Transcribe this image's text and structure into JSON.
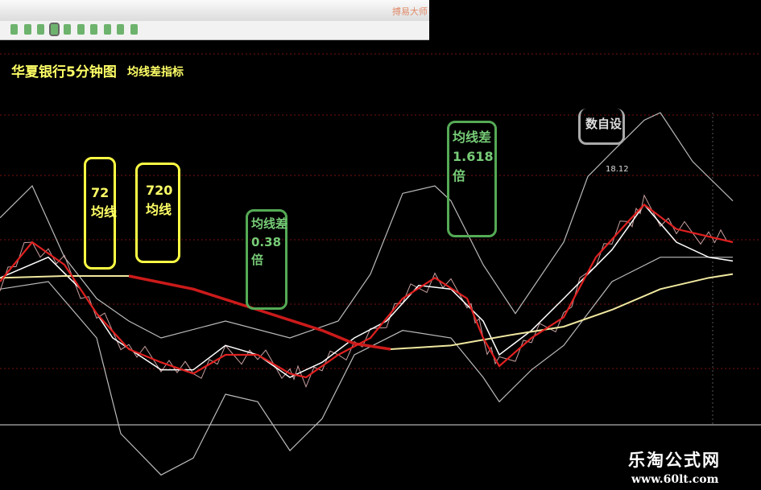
{
  "window": {
    "app_title": "搏易大师",
    "toolbar_buttons": 10,
    "selected_button": 3
  },
  "header": {
    "title": "华夏银行5分钟图",
    "subtitle": "均线差指标"
  },
  "annotations": {
    "ma72": "72\n均线",
    "ma720": "720\n均线",
    "diff1": "均线差\n0.38\n倍",
    "diff2": "均线差\n1.618\n倍",
    "custom": "数自设",
    "price_label": "18.12"
  },
  "watermark": {
    "name": "乐淘公式网",
    "url": "www.60lt.com"
  },
  "colors": {
    "ma72": "#e02020",
    "ma720_red": "#cc1a1a",
    "ma720_yellow": "#f0e8a0",
    "white_ma": "#ffffff",
    "band": "#bbbbbb",
    "grid": "#7a1010",
    "callout_yellow": "#ffff44",
    "callout_green": "#55aa55",
    "callout_gray": "#aaaaaa"
  },
  "chart_data": {
    "type": "line",
    "ylim": [
      16.6,
      18.4
    ],
    "xlim": [
      0,
      91
    ],
    "grid": true,
    "series": [
      {
        "key": "upper_band",
        "x": [
          0,
          4,
          8,
          12,
          16,
          20,
          28,
          36,
          42,
          46,
          50,
          54,
          56,
          60,
          64,
          70,
          73,
          76,
          80,
          82,
          86,
          91
        ],
        "y": [
          17.84,
          18.01,
          17.63,
          17.41,
          17.29,
          17.2,
          17.29,
          17.2,
          17.29,
          17.54,
          17.97,
          18.01,
          17.93,
          17.59,
          17.33,
          17.71,
          18.06,
          18.19,
          18.36,
          18.4,
          18.14,
          17.93
        ]
      },
      {
        "key": "lower_band",
        "x": [
          0,
          6,
          12,
          15,
          20,
          24,
          28,
          32,
          36,
          40,
          44,
          50,
          56,
          60,
          62,
          66,
          70,
          76,
          82,
          91
        ],
        "y": [
          17.46,
          17.5,
          17.2,
          16.69,
          16.47,
          16.56,
          16.9,
          16.86,
          16.6,
          16.77,
          17.11,
          17.24,
          17.2,
          16.99,
          16.86,
          17.03,
          17.16,
          17.5,
          17.63,
          17.63
        ]
      },
      {
        "key": "white_ma",
        "x": [
          0,
          6,
          10,
          14,
          20,
          24,
          28,
          32,
          36,
          40,
          44,
          48,
          52,
          56,
          60,
          62,
          66,
          70,
          76,
          80,
          84,
          88,
          91
        ],
        "y": [
          17.52,
          17.63,
          17.46,
          17.2,
          17.03,
          17.03,
          17.16,
          17.11,
          16.99,
          17.07,
          17.2,
          17.29,
          17.48,
          17.46,
          17.29,
          17.11,
          17.24,
          17.41,
          17.67,
          17.91,
          17.71,
          17.63,
          17.61
        ]
      },
      {
        "key": "ma720",
        "x": [
          0,
          8,
          16,
          24,
          32,
          40,
          44,
          48.5,
          56,
          64,
          70,
          76,
          82,
          88,
          91
        ],
        "y": [
          17.52,
          17.53,
          17.53,
          17.46,
          17.35,
          17.24,
          17.17,
          17.14,
          17.16,
          17.22,
          17.26,
          17.35,
          17.46,
          17.52,
          17.54
        ],
        "red_until": 48.5
      },
      {
        "key": "ma72",
        "x": [
          0,
          4,
          8,
          12,
          16,
          20,
          24,
          28,
          32,
          36,
          38,
          42,
          46,
          50,
          54,
          58,
          60,
          62,
          66,
          70,
          74,
          78,
          80,
          84,
          88,
          91
        ],
        "y": [
          17.5,
          17.71,
          17.59,
          17.33,
          17.14,
          17.07,
          17.01,
          17.11,
          17.11,
          17.01,
          16.99,
          17.11,
          17.2,
          17.41,
          17.52,
          17.41,
          17.2,
          17.05,
          17.2,
          17.31,
          17.63,
          17.82,
          17.91,
          17.78,
          17.74,
          17.71
        ]
      }
    ]
  }
}
